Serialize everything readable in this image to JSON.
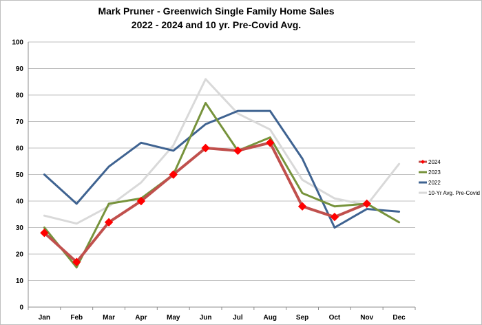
{
  "chart_data": {
    "type": "line",
    "title": "Mark Pruner - Greenwich Single Family Home Sales",
    "subtitle": "2022 - 2024 and 10 yr. Pre-Covid Avg.",
    "xlabel": "",
    "ylabel": "",
    "categories": [
      "Jan",
      "Feb",
      "Mar",
      "Apr",
      "May",
      "Jun",
      "Jul",
      "Aug",
      "Sep",
      "Oct",
      "Nov",
      "Dec"
    ],
    "ylim": [
      0,
      100
    ],
    "yticks": [
      0,
      10,
      20,
      30,
      40,
      50,
      60,
      70,
      80,
      90,
      100
    ],
    "grid": true,
    "legend_position": "right",
    "series": [
      {
        "name": "10-Yr Avg. Pre-Covid",
        "color": "#d9d9d9",
        "marker": "none",
        "values": [
          34.5,
          31.5,
          38,
          47,
          61,
          86,
          73,
          67,
          48,
          41,
          38.5,
          54
        ]
      },
      {
        "name": "2022",
        "color": "#3f6391",
        "marker": "none",
        "values": [
          50,
          39,
          53,
          62,
          59,
          69,
          74,
          74,
          56,
          30,
          37,
          36
        ]
      },
      {
        "name": "2023",
        "color": "#77933c",
        "marker": "none",
        "values": [
          30,
          15,
          39,
          41,
          50,
          77,
          59,
          64,
          43,
          38,
          39,
          32
        ]
      },
      {
        "name": "2024",
        "color": "#c0504d",
        "marker_color": "#ff0000",
        "marker": "diamond",
        "values": [
          28,
          17,
          32,
          40,
          50,
          60,
          59,
          62,
          38,
          34,
          39,
          null
        ]
      }
    ],
    "legend_order": [
      "2024",
      "2023",
      "2022",
      "10-Yr Avg. Pre-Covid"
    ]
  }
}
